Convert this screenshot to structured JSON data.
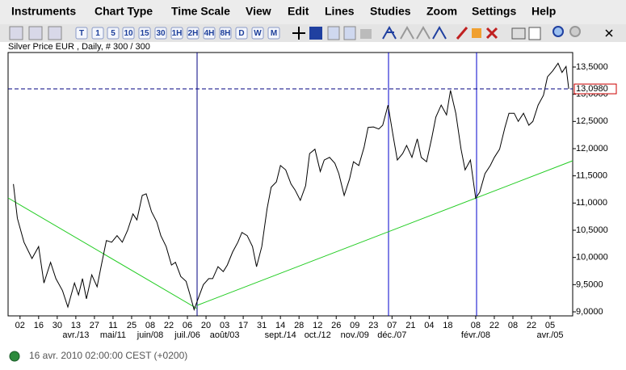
{
  "menu": [
    "Instruments",
    "Chart Type",
    "Time Scale",
    "View",
    "Edit",
    "Lines",
    "Studies",
    "Zoom",
    "Settings",
    "Help"
  ],
  "toolbar": {
    "buttons": [
      "T",
      "1",
      "5",
      "10",
      "15",
      "30",
      "1H",
      "2H",
      "4H",
      "8H",
      "D",
      "W",
      "M"
    ]
  },
  "chart_data": {
    "type": "line",
    "title": "Silver Price EUR , Daily, # 300 / 300",
    "x": [
      -5,
      -2,
      3,
      9,
      14,
      18,
      23,
      27,
      32,
      36,
      41,
      44,
      47,
      50,
      54,
      58,
      61,
      65,
      69,
      73,
      77,
      81,
      85,
      88,
      92,
      95,
      99,
      103,
      106,
      110,
      114,
      117,
      121,
      125,
      128,
      131,
      134,
      138,
      142,
      145,
      149,
      153,
      156,
      160,
      164,
      167,
      171,
      175,
      178,
      182,
      186,
      189,
      193,
      196,
      200,
      204,
      207,
      211,
      215,
      218,
      222,
      226,
      229,
      233,
      237,
      240,
      244,
      248,
      251,
      255,
      259,
      262,
      266,
      270,
      273,
      277,
      281,
      284,
      288,
      291,
      295,
      299,
      302,
      306,
      310,
      313,
      317,
      321,
      324,
      328,
      332,
      335,
      339,
      343,
      346,
      350,
      354,
      357,
      361,
      365,
      368,
      372,
      375,
      379,
      383,
      386,
      390,
      394,
      397,
      401,
      405,
      408,
      411,
      413
    ],
    "series": [
      {
        "name": "Silver Price EUR",
        "color": "#000000",
        "values": [
          11.35,
          10.72,
          10.28,
          9.98,
          10.2,
          9.53,
          9.91,
          9.61,
          9.39,
          9.09,
          9.53,
          9.31,
          9.61,
          9.24,
          9.68,
          9.46,
          9.83,
          10.31,
          10.28,
          10.4,
          10.28,
          10.5,
          10.8,
          10.69,
          11.14,
          11.17,
          10.84,
          10.65,
          10.4,
          10.2,
          9.86,
          9.91,
          9.65,
          9.56,
          9.31,
          9.04,
          9.24,
          9.5,
          9.61,
          9.61,
          9.83,
          9.74,
          9.86,
          10.1,
          10.28,
          10.46,
          10.4,
          10.2,
          9.83,
          10.2,
          10.9,
          11.29,
          11.39,
          11.69,
          11.61,
          11.35,
          11.24,
          11.05,
          11.32,
          11.91,
          11.99,
          11.58,
          11.79,
          11.84,
          11.73,
          11.54,
          11.14,
          11.44,
          11.76,
          11.69,
          12.03,
          12.39,
          12.4,
          12.36,
          12.43,
          12.8,
          12.21,
          11.79,
          11.91,
          12.06,
          11.84,
          12.18,
          11.84,
          11.76,
          12.21,
          12.58,
          12.8,
          12.62,
          13.07,
          12.65,
          11.99,
          11.61,
          11.79,
          11.09,
          11.2,
          11.54,
          11.69,
          11.84,
          11.99,
          12.39,
          12.65,
          12.65,
          12.5,
          12.65,
          12.43,
          12.5,
          12.8,
          12.98,
          13.32,
          13.43,
          13.57,
          13.4,
          13.51,
          13.1
        ]
      }
    ],
    "last_value": {
      "value": 13.098,
      "label": "13,0980"
    },
    "xlim": [
      -9,
      416
    ],
    "ylim": [
      8.926,
      13.767
    ],
    "yticks": [
      {
        "value": 9.0,
        "label": "9,0000"
      },
      {
        "value": 9.5,
        "label": "9,5000"
      },
      {
        "value": 10.0,
        "label": "10,0000"
      },
      {
        "value": 10.5,
        "label": "10,5000"
      },
      {
        "value": 11.0,
        "label": "11,0000"
      },
      {
        "value": 11.5,
        "label": "11,5000"
      },
      {
        "value": 12.0,
        "label": "12,0000"
      },
      {
        "value": 12.5,
        "label": "12,5000"
      },
      {
        "value": 13.0,
        "label": "13,0000"
      },
      {
        "value": 13.5,
        "label": "13,5000"
      }
    ],
    "xticks": [
      {
        "value": 0,
        "label": "02"
      },
      {
        "value": 14,
        "label": "16"
      },
      {
        "value": 28,
        "label": "30"
      },
      {
        "value": 42,
        "label": "13"
      },
      {
        "value": 56,
        "label": "27"
      },
      {
        "value": 70,
        "label": "11"
      },
      {
        "value": 84,
        "label": "25"
      },
      {
        "value": 98,
        "label": "08"
      },
      {
        "value": 112,
        "label": "22"
      },
      {
        "value": 126,
        "label": "06"
      },
      {
        "value": 140,
        "label": "20"
      },
      {
        "value": 154,
        "label": "03"
      },
      {
        "value": 168,
        "label": "17"
      },
      {
        "value": 182,
        "label": "31"
      },
      {
        "value": 196,
        "label": "14"
      },
      {
        "value": 210,
        "label": "28"
      },
      {
        "value": 224,
        "label": "12"
      },
      {
        "value": 238,
        "label": "26"
      },
      {
        "value": 252,
        "label": "09"
      },
      {
        "value": 266,
        "label": "23"
      },
      {
        "value": 280,
        "label": "07"
      },
      {
        "value": 294,
        "label": "21"
      },
      {
        "value": 308,
        "label": "04"
      },
      {
        "value": 322,
        "label": "18"
      },
      {
        "value": 343,
        "label": "08"
      },
      {
        "value": 357,
        "label": "22"
      },
      {
        "value": 371,
        "label": "08"
      },
      {
        "value": 385,
        "label": "22"
      },
      {
        "value": 399,
        "label": "05"
      }
    ],
    "xticks_months": [
      {
        "value": 42,
        "label": "avr./13"
      },
      {
        "value": 70,
        "label": "mai/11"
      },
      {
        "value": 98,
        "label": "juin/08"
      },
      {
        "value": 126,
        "label": "juil./06"
      },
      {
        "value": 154,
        "label": "août/03"
      },
      {
        "value": 196,
        "label": "sept./14"
      },
      {
        "value": 224,
        "label": "oct./12"
      },
      {
        "value": 252,
        "label": "nov./09"
      },
      {
        "value": 280,
        "label": "déc./07"
      },
      {
        "value": 343,
        "label": "févr./08"
      },
      {
        "value": 399,
        "label": "avr./05"
      }
    ]
  },
  "status": "16 avr. 2010 02:00:00  CEST (+0200)"
}
